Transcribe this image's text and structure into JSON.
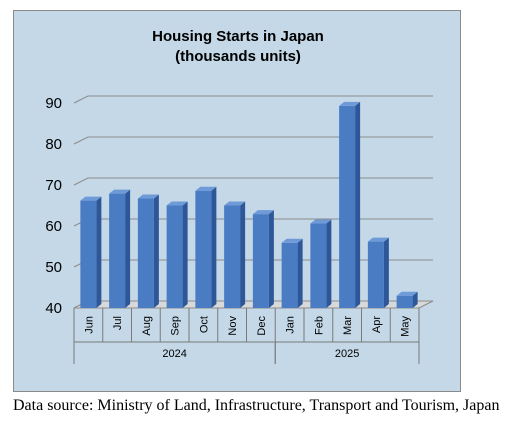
{
  "chart_data": {
    "type": "bar",
    "title": "Housing Starts in Japan",
    "subtitle": "(thousands units)",
    "categories": [
      "Jun",
      "Jul",
      "Aug",
      "Sep",
      "Oct",
      "Nov",
      "Dec",
      "Jan",
      "Feb",
      "Mar",
      "Apr",
      "May"
    ],
    "groups": [
      {
        "label": "2024",
        "from": 0,
        "to": 6
      },
      {
        "label": "2025",
        "from": 7,
        "to": 11
      }
    ],
    "values": [
      66.2,
      67.9,
      66.7,
      65.0,
      68.6,
      65.0,
      62.9,
      55.9,
      60.6,
      89.3,
      56.2,
      43.0
    ],
    "ylim": [
      40,
      90
    ],
    "yticks": [
      "40",
      "50",
      "60",
      "70",
      "80",
      "90"
    ],
    "bar_color": "#4a7cc4",
    "grid": true,
    "style": "3d"
  },
  "source_note": "Data source: Ministry of Land, Infrastructure, Transport and Tourism, Japan"
}
